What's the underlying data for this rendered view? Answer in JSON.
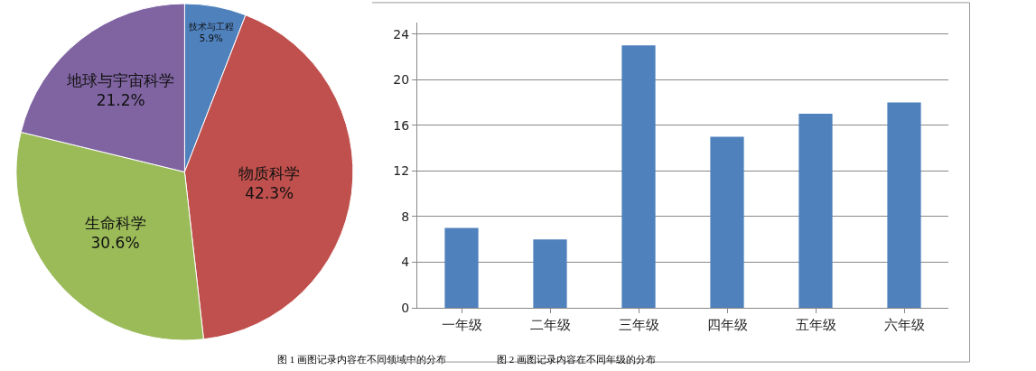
{
  "chart_data": [
    {
      "type": "pie",
      "categories": [
        "技术与工程",
        "物质科学",
        "生命科学",
        "地球与宇宙科学"
      ],
      "values": [
        5.9,
        42.3,
        30.6,
        21.2
      ],
      "colors": [
        "#4f81bd",
        "#c0504d",
        "#9bbb59",
        "#8064a2"
      ],
      "value_labels": [
        "5.9%",
        "42.3%",
        "30.6%",
        "21.2%"
      ],
      "legend": false,
      "annotations": [
        "图 1 画图记录内容在不同领域中的分布"
      ]
    },
    {
      "type": "bar",
      "categories": [
        "一年级",
        "二年级",
        "三年级",
        "四年级",
        "五年级",
        "六年级"
      ],
      "values": [
        7,
        6,
        23,
        15,
        17,
        18
      ],
      "color": "#4f81bd",
      "ylim": [
        0,
        25
      ],
      "yticks": [
        0,
        4,
        8,
        12,
        16,
        20,
        24
      ],
      "grid": "y",
      "legend": false,
      "annotations": [
        "图 2 画图记录内容在不同年级的分布"
      ]
    }
  ]
}
